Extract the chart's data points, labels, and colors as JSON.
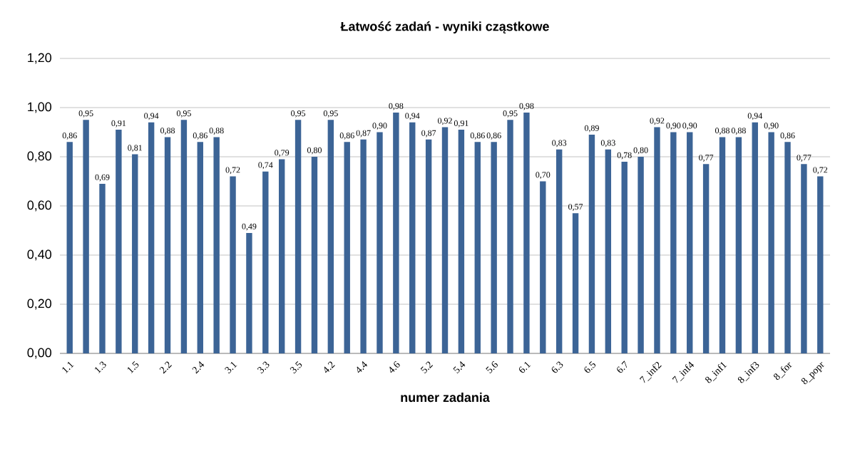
{
  "chart_data": {
    "type": "bar",
    "title": "Łatwość zadań - wyniki cząstkowe",
    "xlabel": "numer zadania",
    "categories": [
      "1.1",
      null,
      "1.3",
      null,
      "1.5",
      null,
      "2.2",
      null,
      "2.4",
      null,
      "3.1",
      null,
      "3.3",
      null,
      "3.5",
      null,
      "4.2",
      null,
      "4.4",
      null,
      "4.6",
      null,
      "5.2",
      null,
      "5.4",
      null,
      "5.6",
      null,
      "6.1",
      null,
      "6.3",
      null,
      "6.5",
      null,
      "6.7",
      null,
      "7_inf2",
      null,
      "7_inf4",
      null,
      "8_inf1",
      null,
      "8_inf3",
      null,
      "8_for",
      null,
      "8_popr"
    ],
    "values": [
      0.86,
      0.95,
      0.69,
      0.91,
      0.81,
      0.94,
      0.88,
      0.95,
      0.86,
      0.88,
      0.72,
      0.49,
      0.74,
      0.79,
      0.95,
      0.8,
      0.95,
      0.86,
      0.87,
      0.9,
      0.98,
      0.94,
      0.87,
      0.92,
      0.91,
      0.86,
      0.86,
      0.95,
      0.98,
      0.7,
      0.83,
      0.57,
      0.89,
      0.83,
      0.78,
      0.8,
      0.92,
      0.9,
      0.9,
      0.77,
      0.88,
      0.88,
      0.94,
      0.9,
      0.86,
      0.77,
      0.72
    ],
    "value_labels": [
      "0,86",
      "0,95",
      "0,69",
      "0,91",
      "0,81",
      "0,94",
      "0,88",
      "0,95",
      "0,86",
      "0,88",
      "0,72",
      "0,49",
      "0,74",
      "0,79",
      "0,95",
      "0,80",
      "0,95",
      "0,86",
      "0,87",
      "0,90",
      "0,98",
      "0,94",
      "0,87",
      "0,92",
      "0,91",
      "0,86",
      "0,86",
      "0,95",
      "0,98",
      "0,70",
      "0,83",
      "0,57",
      "0,89",
      "0,83",
      "0,78",
      "0,80",
      "0,92",
      "0,90",
      "0,90",
      "0,77",
      "0,88",
      "0,88",
      "0,94",
      "0,90",
      "0,86",
      "0,77",
      "0,72"
    ],
    "color": "#3c6496",
    "ylim": [
      0,
      1.2
    ],
    "yticks": [
      {
        "value": 0,
        "label": "0,00"
      },
      {
        "value": 0.2,
        "label": "0,20"
      },
      {
        "value": 0.4,
        "label": "0,40"
      },
      {
        "value": 0.6,
        "label": "0,60"
      },
      {
        "value": 0.8,
        "label": "0,80"
      },
      {
        "value": 1.0,
        "label": "1,00"
      },
      {
        "value": 1.2,
        "label": "1,20"
      }
    ],
    "grid": "y"
  }
}
